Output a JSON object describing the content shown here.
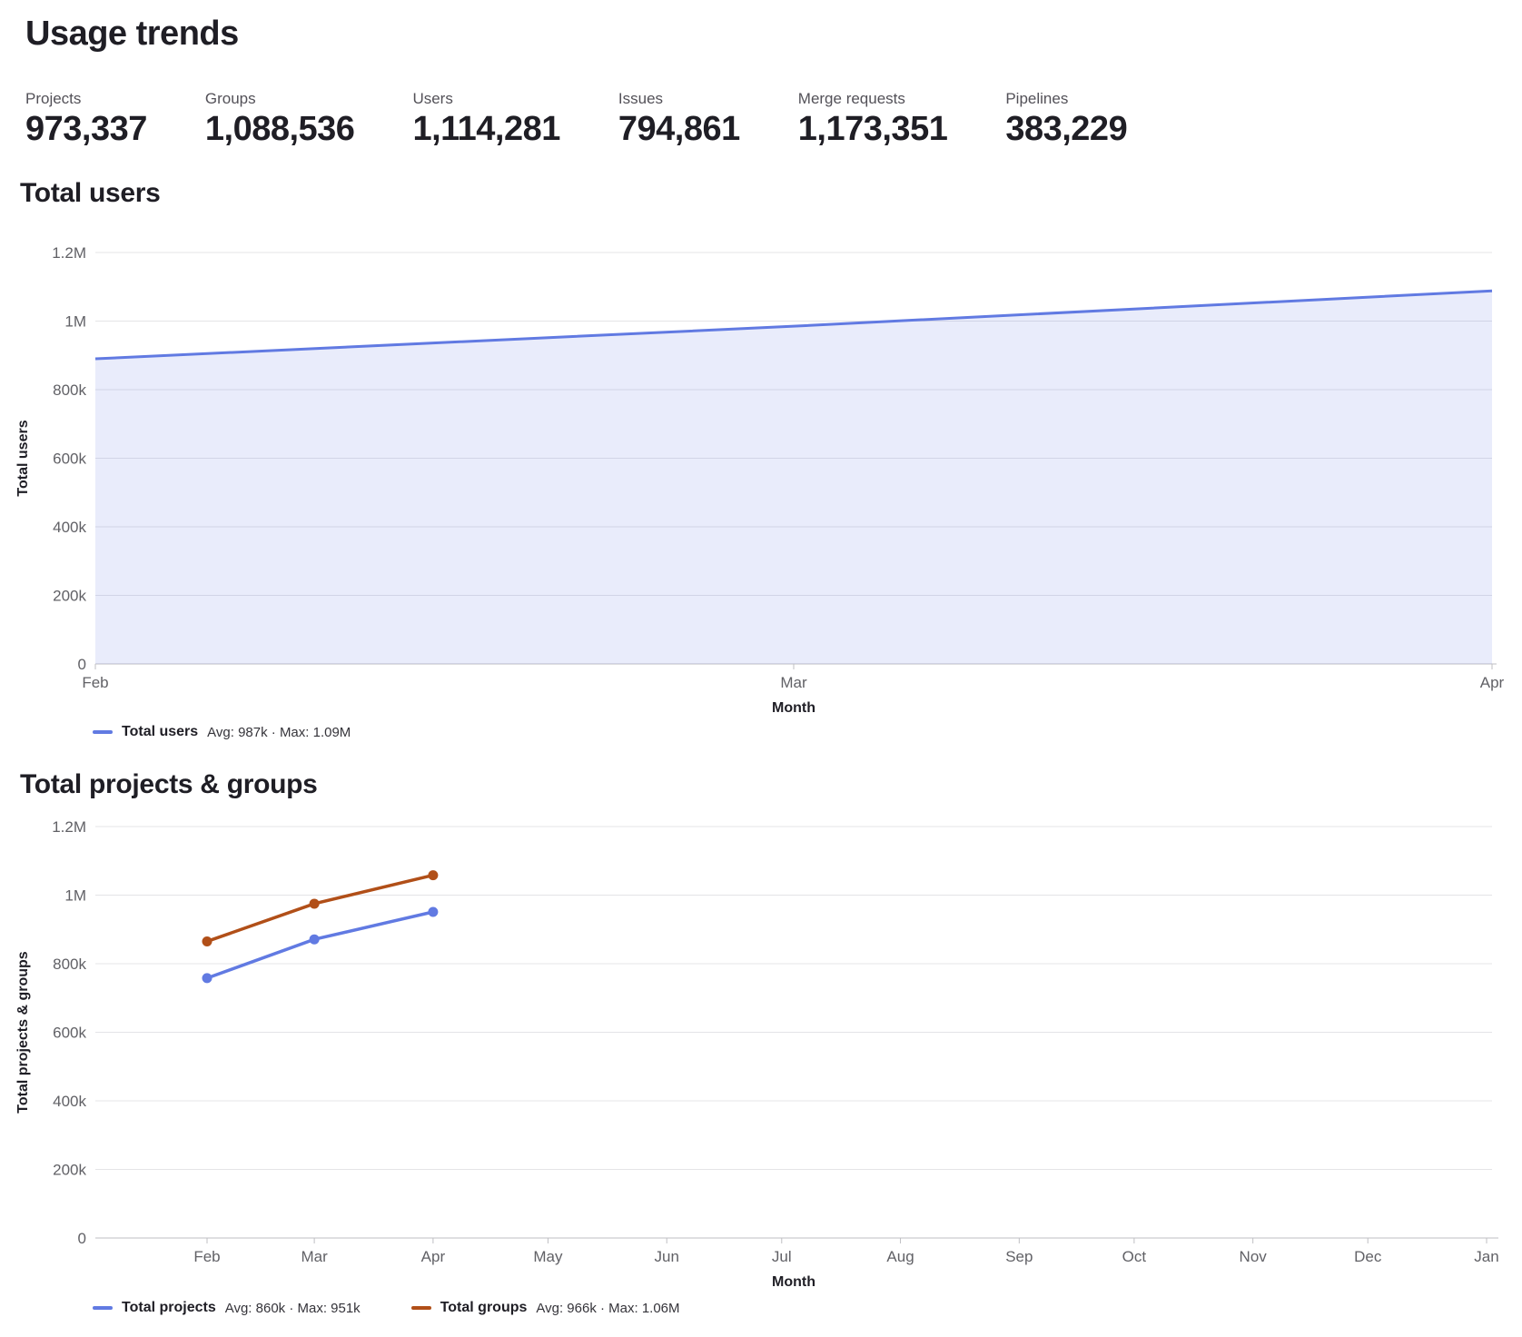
{
  "page": {
    "title": "Usage trends"
  },
  "stats": [
    {
      "label": "Projects",
      "value": "973,337"
    },
    {
      "label": "Groups",
      "value": "1,088,536"
    },
    {
      "label": "Users",
      "value": "1,114,281"
    },
    {
      "label": "Issues",
      "value": "794,861"
    },
    {
      "label": "Merge requests",
      "value": "1,173,351"
    },
    {
      "label": "Pipelines",
      "value": "383,229"
    }
  ],
  "chart_data": [
    {
      "type": "area",
      "title": "Total users",
      "xlabel": "Month",
      "ylabel": "Total users",
      "x": [
        "Feb",
        "Mar",
        "Apr"
      ],
      "series": [
        {
          "name": "Total users",
          "values": [
            890000,
            985000,
            1088000
          ],
          "color": "#617ae2"
        }
      ],
      "ylim": [
        0,
        1200000
      ],
      "ytick_labels": [
        "0",
        "200k",
        "400k",
        "600k",
        "800k",
        "1M",
        "1.2M"
      ],
      "grid": true,
      "legend_position": "bottom",
      "legend": [
        {
          "name": "Total users",
          "stats": "Avg: 987k · Max: 1.09M",
          "color": "#617ae2"
        }
      ]
    },
    {
      "type": "line",
      "title": "Total projects & groups",
      "xlabel": "Month",
      "ylabel": "Total projects & groups",
      "x": [
        "Feb",
        "Mar",
        "Apr",
        "May",
        "Jun",
        "Jul",
        "Aug",
        "Sep",
        "Oct",
        "Nov",
        "Dec",
        "Jan"
      ],
      "series": [
        {
          "name": "Total projects",
          "values": [
            758000,
            871000,
            951000
          ],
          "color": "#617ae2"
        },
        {
          "name": "Total groups",
          "values": [
            865000,
            975000,
            1058000
          ],
          "color": "#b14f18"
        }
      ],
      "ylim": [
        0,
        1200000
      ],
      "ytick_labels": [
        "0",
        "200k",
        "400k",
        "600k",
        "800k",
        "1M",
        "1.2M"
      ],
      "grid": true,
      "legend_position": "bottom",
      "legend": [
        {
          "name": "Total projects",
          "stats": "Avg: 860k · Max: 951k",
          "color": "#617ae2"
        },
        {
          "name": "Total groups",
          "stats": "Avg: 966k · Max: 1.06M",
          "color": "#b14f18"
        }
      ]
    }
  ],
  "colors": {
    "accent_blue": "#617ae2",
    "accent_orange": "#b14f18",
    "text_primary": "#1f1e25",
    "text_secondary": "#535158",
    "tick_label": "#616166",
    "gridline": "#e4e4e7",
    "axis_line": "#bfbfc3"
  }
}
